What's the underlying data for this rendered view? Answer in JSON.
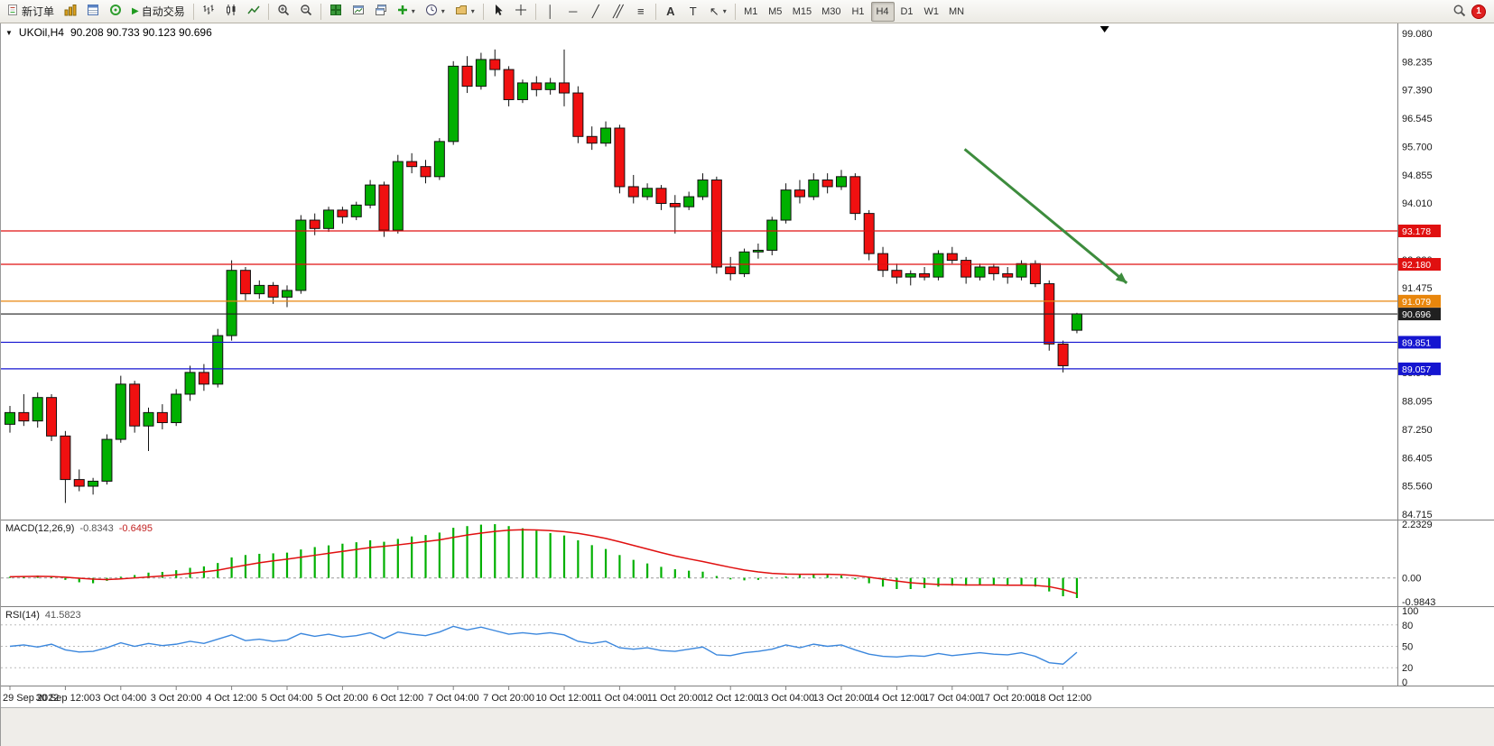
{
  "toolbar": {
    "new_order_label": "新订单",
    "auto_trading_label": "自动交易",
    "text_tool_label": "A",
    "text_label_tool_label": "T",
    "timeframes": [
      "M1",
      "M5",
      "M15",
      "M30",
      "H1",
      "H4",
      "D1",
      "W1",
      "MN"
    ],
    "active_timeframe": "H4",
    "notification_count": "1"
  },
  "icons": {
    "dropdown": "▾",
    "collapse_triangle": "▼",
    "autoplay": "▶",
    "vertical_line": "│",
    "horizontal_line": "─",
    "trendline": "╱",
    "channel": "╱╱",
    "fibonacci": "≡",
    "crosshair": "+",
    "arrow_tool": "↖"
  },
  "chart_data": {
    "type": "candlestick",
    "symbol": "UKOil",
    "timeframe": "H4",
    "title": "UKOil,H4",
    "ohlc_display": "90.208 90.733 90.123 90.696",
    "price_axis_labels": [
      "99.080",
      "98.235",
      "97.390",
      "96.545",
      "95.700",
      "94.855",
      "94.010",
      "93.165",
      "92.320",
      "91.475",
      "90.630",
      "89.785",
      "88.940",
      "88.095",
      "87.250",
      "86.405",
      "85.560",
      "84.715"
    ],
    "price_scale": {
      "max": 99.269,
      "min": 84.553
    },
    "time_labels": [
      "29 Sep 2022",
      "30 Sep 12:00",
      "3 Oct 04:00",
      "3 Oct 20:00",
      "4 Oct 12:00",
      "5 Oct 04:00",
      "5 Oct 20:00",
      "6 Oct 12:00",
      "7 Oct 04:00",
      "7 Oct 20:00",
      "10 Oct 12:00",
      "11 Oct 04:00",
      "11 Oct 20:00",
      "12 Oct 12:00",
      "13 Oct 04:00",
      "13 Oct 20:00",
      "14 Oct 12:00",
      "17 Oct 04:00",
      "17 Oct 20:00",
      "18 Oct 12:00"
    ],
    "candles_per_time_label": 4,
    "candle_colors": {
      "up": "#00b000",
      "down": "#f01010",
      "outline": "#111111"
    },
    "candles": [
      [
        87.4,
        87.95,
        87.15,
        87.75
      ],
      [
        87.75,
        88.3,
        87.35,
        87.5
      ],
      [
        87.5,
        88.35,
        87.3,
        88.2
      ],
      [
        88.2,
        88.3,
        86.9,
        87.05
      ],
      [
        87.05,
        87.2,
        85.05,
        85.75
      ],
      [
        85.75,
        86.05,
        85.4,
        85.55
      ],
      [
        85.55,
        85.8,
        85.3,
        85.7
      ],
      [
        85.7,
        87.1,
        85.6,
        86.95
      ],
      [
        86.95,
        88.85,
        86.85,
        88.6
      ],
      [
        88.6,
        88.7,
        87.15,
        87.35
      ],
      [
        87.35,
        87.9,
        86.6,
        87.75
      ],
      [
        87.75,
        88.0,
        87.25,
        87.45
      ],
      [
        87.45,
        88.45,
        87.35,
        88.3
      ],
      [
        88.3,
        89.15,
        88.1,
        88.95
      ],
      [
        88.95,
        89.2,
        88.4,
        88.6
      ],
      [
        88.6,
        90.25,
        88.5,
        90.05
      ],
      [
        90.05,
        92.3,
        89.9,
        92.0
      ],
      [
        92.0,
        92.1,
        91.1,
        91.3
      ],
      [
        91.3,
        91.7,
        91.15,
        91.55
      ],
      [
        91.55,
        91.65,
        91.0,
        91.2
      ],
      [
        91.2,
        91.55,
        90.9,
        91.4
      ],
      [
        91.4,
        93.65,
        91.3,
        93.5
      ],
      [
        93.5,
        93.7,
        93.05,
        93.25
      ],
      [
        93.25,
        93.9,
        93.15,
        93.8
      ],
      [
        93.8,
        93.9,
        93.4,
        93.6
      ],
      [
        93.6,
        94.05,
        93.5,
        93.95
      ],
      [
        93.95,
        94.7,
        93.85,
        94.55
      ],
      [
        94.55,
        94.65,
        93.0,
        93.2
      ],
      [
        93.2,
        95.45,
        93.1,
        95.25
      ],
      [
        95.25,
        95.5,
        94.9,
        95.1
      ],
      [
        95.1,
        95.3,
        94.6,
        94.8
      ],
      [
        94.8,
        95.95,
        94.7,
        95.85
      ],
      [
        95.85,
        98.25,
        95.75,
        98.1
      ],
      [
        98.1,
        98.4,
        97.3,
        97.5
      ],
      [
        97.5,
        98.5,
        97.4,
        98.3
      ],
      [
        98.3,
        98.6,
        97.8,
        98.0
      ],
      [
        98.0,
        98.1,
        96.9,
        97.1
      ],
      [
        97.1,
        97.7,
        97.0,
        97.6
      ],
      [
        97.6,
        97.8,
        97.2,
        97.4
      ],
      [
        97.4,
        97.75,
        97.25,
        97.6
      ],
      [
        97.6,
        98.6,
        96.9,
        97.3
      ],
      [
        97.3,
        97.5,
        95.8,
        96.0
      ],
      [
        96.0,
        96.3,
        95.6,
        95.8
      ],
      [
        95.8,
        96.45,
        95.7,
        96.25
      ],
      [
        96.25,
        96.35,
        94.3,
        94.5
      ],
      [
        94.5,
        94.85,
        94.0,
        94.2
      ],
      [
        94.2,
        94.6,
        94.1,
        94.45
      ],
      [
        94.45,
        94.55,
        93.8,
        94.0
      ],
      [
        94.0,
        94.25,
        93.1,
        93.9
      ],
      [
        93.9,
        94.35,
        93.8,
        94.2
      ],
      [
        94.2,
        94.9,
        94.1,
        94.7
      ],
      [
        94.7,
        94.8,
        91.9,
        92.1
      ],
      [
        92.1,
        92.4,
        91.7,
        91.9
      ],
      [
        91.9,
        92.65,
        91.8,
        92.55
      ],
      [
        92.55,
        92.8,
        92.35,
        92.6
      ],
      [
        92.6,
        93.6,
        92.45,
        93.5
      ],
      [
        93.5,
        94.6,
        93.4,
        94.4
      ],
      [
        94.4,
        94.7,
        94.0,
        94.2
      ],
      [
        94.2,
        94.9,
        94.1,
        94.7
      ],
      [
        94.7,
        94.9,
        94.3,
        94.5
      ],
      [
        94.5,
        95.0,
        94.4,
        94.8
      ],
      [
        94.8,
        94.9,
        93.5,
        93.7
      ],
      [
        93.7,
        93.8,
        92.3,
        92.5
      ],
      [
        92.5,
        92.7,
        91.8,
        92.0
      ],
      [
        92.0,
        92.2,
        91.6,
        91.8
      ],
      [
        91.8,
        92.0,
        91.55,
        91.9
      ],
      [
        91.9,
        92.1,
        91.7,
        91.8
      ],
      [
        91.8,
        92.6,
        91.7,
        92.5
      ],
      [
        92.5,
        92.7,
        92.2,
        92.3
      ],
      [
        92.3,
        92.4,
        91.6,
        91.8
      ],
      [
        91.8,
        92.2,
        91.7,
        92.1
      ],
      [
        92.1,
        92.2,
        91.7,
        91.9
      ],
      [
        91.9,
        92.1,
        91.6,
        91.8
      ],
      [
        91.8,
        92.3,
        91.7,
        92.2
      ],
      [
        92.2,
        92.3,
        91.5,
        91.6
      ],
      [
        91.6,
        91.7,
        89.6,
        89.8
      ],
      [
        89.8,
        89.9,
        88.95,
        89.15
      ],
      [
        90.21,
        90.73,
        90.12,
        90.7
      ]
    ],
    "horizontal_lines": [
      {
        "price": 93.178,
        "label": "93.178",
        "color": "#e01010"
      },
      {
        "price": 92.18,
        "label": "92.180",
        "color": "#e01010"
      },
      {
        "price": 91.079,
        "label": "91.079",
        "color": "#e8860c"
      },
      {
        "price": 90.696,
        "label": "90.696",
        "color": "#202020",
        "current": true
      },
      {
        "price": 89.851,
        "label": "89.851",
        "color": "#1515d0"
      },
      {
        "price": 89.057,
        "label": "89.057",
        "color": "#1515d0"
      }
    ],
    "trend_arrow": {
      "from_index": 68.9,
      "from_price": 95.62,
      "to_index": 80.6,
      "to_price": 91.62,
      "color": "#3d8c3d"
    },
    "shift_marker_index": 79,
    "macd": {
      "name": "MACD(12,26,9)",
      "value_main": "-0.8343",
      "value_signal": "-0.6495",
      "axis_labels": [
        "2.2329",
        "0.00",
        "-0.9843"
      ],
      "scale": {
        "max": 2.2329,
        "min": -0.9843
      },
      "colors": {
        "histogram": "#00b000",
        "signal": "#e01010"
      },
      "histogram": [
        0.05,
        0.08,
        0.1,
        0.04,
        -0.08,
        -0.18,
        -0.22,
        -0.12,
        0.05,
        0.12,
        0.22,
        0.25,
        0.32,
        0.42,
        0.48,
        0.62,
        0.85,
        0.95,
        1.0,
        1.02,
        1.05,
        1.18,
        1.28,
        1.35,
        1.42,
        1.48,
        1.56,
        1.5,
        1.62,
        1.72,
        1.78,
        1.88,
        2.08,
        2.15,
        2.21,
        2.23,
        2.15,
        2.06,
        1.96,
        1.86,
        1.76,
        1.56,
        1.36,
        1.2,
        0.95,
        0.75,
        0.6,
        0.46,
        0.36,
        0.3,
        0.26,
        0.08,
        -0.06,
        -0.1,
        -0.08,
        -0.02,
        0.06,
        0.12,
        0.16,
        0.15,
        0.1,
        -0.06,
        -0.22,
        -0.36,
        -0.46,
        -0.46,
        -0.42,
        -0.36,
        -0.32,
        -0.32,
        -0.3,
        -0.3,
        -0.31,
        -0.32,
        -0.36,
        -0.56,
        -0.76,
        -0.8343
      ],
      "signal": [
        0.05,
        0.06,
        0.07,
        0.06,
        0.03,
        -0.01,
        -0.05,
        -0.07,
        -0.04,
        0.0,
        0.04,
        0.08,
        0.13,
        0.19,
        0.25,
        0.32,
        0.43,
        0.53,
        0.63,
        0.71,
        0.78,
        0.86,
        0.94,
        1.02,
        1.1,
        1.18,
        1.26,
        1.31,
        1.37,
        1.44,
        1.51,
        1.58,
        1.68,
        1.78,
        1.86,
        1.93,
        1.98,
        2.0,
        1.99,
        1.96,
        1.92,
        1.85,
        1.75,
        1.64,
        1.5,
        1.35,
        1.2,
        1.05,
        0.91,
        0.79,
        0.68,
        0.56,
        0.44,
        0.33,
        0.25,
        0.19,
        0.16,
        0.15,
        0.15,
        0.15,
        0.14,
        0.1,
        0.03,
        -0.05,
        -0.13,
        -0.2,
        -0.24,
        -0.27,
        -0.28,
        -0.29,
        -0.29,
        -0.29,
        -0.3,
        -0.3,
        -0.31,
        -0.36,
        -0.48,
        -0.6495
      ]
    },
    "rsi": {
      "name": "RSI(14)",
      "value": "41.5823",
      "axis_labels": [
        "100",
        "80",
        "50",
        "20",
        "0"
      ],
      "levels": [
        80,
        50,
        20
      ],
      "scale": {
        "max": 100,
        "min": 0
      },
      "color": "#3b87dd",
      "values": [
        50,
        52,
        49,
        53,
        45,
        42,
        43,
        48,
        55,
        50,
        54,
        51,
        53,
        57,
        54,
        60,
        66,
        58,
        60,
        57,
        59,
        68,
        64,
        67,
        63,
        65,
        69,
        61,
        70,
        67,
        65,
        70,
        78,
        73,
        77,
        72,
        67,
        69,
        67,
        69,
        66,
        57,
        54,
        57,
        48,
        46,
        48,
        44,
        43,
        46,
        49,
        38,
        37,
        41,
        43,
        46,
        52,
        48,
        53,
        50,
        52,
        45,
        39,
        36,
        35,
        37,
        36,
        40,
        37,
        39,
        41,
        39,
        38,
        41,
        36,
        27,
        25,
        41.58
      ]
    }
  }
}
